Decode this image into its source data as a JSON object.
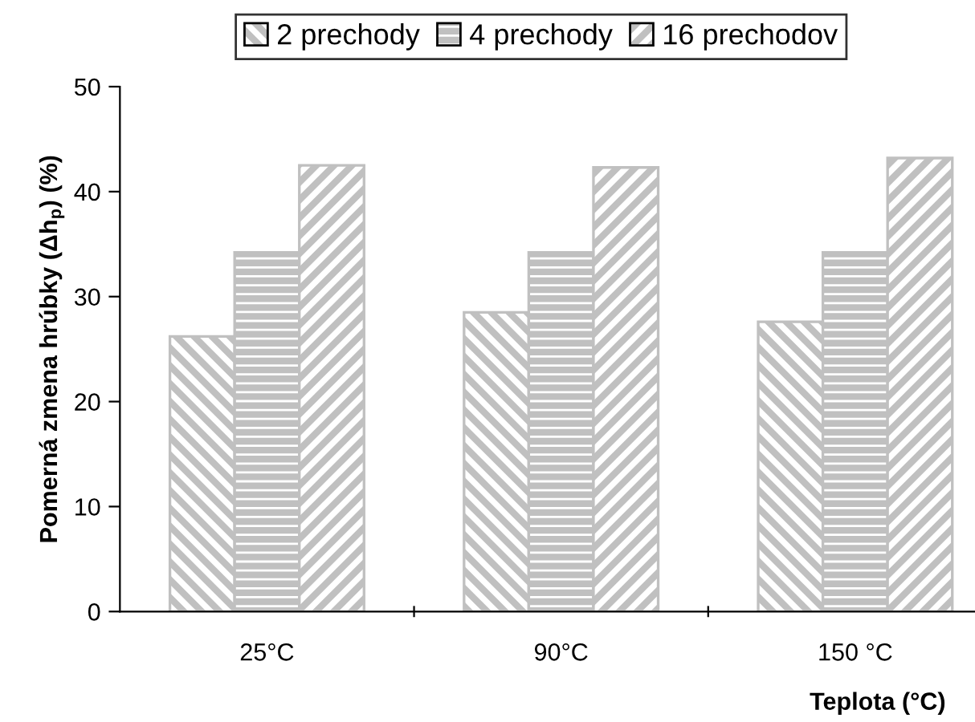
{
  "chart_data": {
    "type": "bar",
    "xlabel": "Teplota (°C)",
    "ylabel": "Pomerná zmena hrúbky (Δh$_{p}$) (%)",
    "categories": [
      "25°C",
      "90°C",
      "150 °C"
    ],
    "series": [
      {
        "name": "2 prechody",
        "color": "#c0c0c0",
        "values": [
          26.2,
          28.5,
          27.6
        ]
      },
      {
        "name": "4 prechody",
        "color": "#c0c0c0",
        "values": [
          34.2,
          34.2,
          34.2
        ]
      },
      {
        "name": "16 prechodov",
        "color": "#c0c0c0",
        "values": [
          42.5,
          42.3,
          43.2
        ]
      }
    ],
    "ylim": [
      0,
      50
    ],
    "yticks": [
      0,
      10,
      20,
      30,
      40,
      50
    ],
    "grid": false,
    "legend": "top"
  }
}
